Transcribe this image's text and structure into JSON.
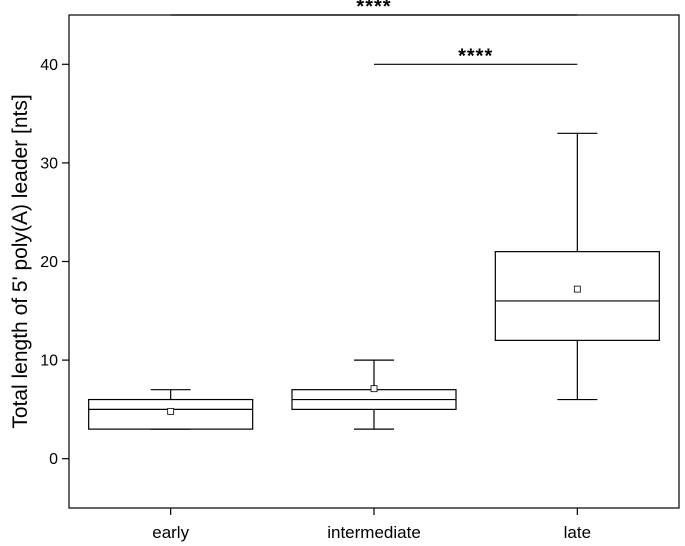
{
  "chart_data": {
    "type": "box",
    "categories": [
      "early",
      "intermediate",
      "late"
    ],
    "boxes": [
      {
        "category": "early",
        "whisker_low": 3,
        "q1": 3,
        "median": 5,
        "q3": 6,
        "whisker_high": 7,
        "mean": 4.8
      },
      {
        "category": "intermediate",
        "whisker_low": 3,
        "q1": 5,
        "median": 6,
        "q3": 7,
        "whisker_high": 10,
        "mean": 7.1
      },
      {
        "category": "late",
        "whisker_low": 6,
        "q1": 12,
        "median": 16,
        "q3": 21,
        "whisker_high": 33,
        "mean": 17.2
      }
    ],
    "ylabel": "Total length of 5' poly(A) leader [nts]",
    "xlabel": "",
    "ylim": [
      -5,
      45
    ],
    "yticks": [
      0,
      10,
      20,
      30,
      40
    ],
    "grid": false,
    "significance": [
      {
        "from": "early",
        "to": "late",
        "y": 45,
        "label": "****"
      },
      {
        "from": "intermediate",
        "to": "late",
        "y": 40,
        "label": "****"
      }
    ]
  }
}
